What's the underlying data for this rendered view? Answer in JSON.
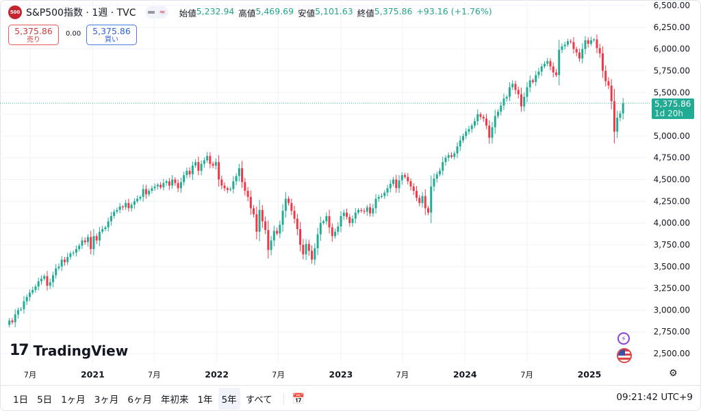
{
  "header": {
    "symbol_logo": "500",
    "title": "S&P500指数 · 1週 · TVC",
    "mini_icon": "≈",
    "ohlc": {
      "open_label": "始値",
      "open": "5,232.94",
      "high_label": "高値",
      "high": "5,469.69",
      "low_label": "安値",
      "low": "5,101.63",
      "close_label": "終値",
      "close": "5,375.86",
      "change": "+93.16 (+1.76%)"
    }
  },
  "trade": {
    "sell_price": "5,375.86",
    "sell_label": "売り",
    "spread": "0.00",
    "buy_price": "5,375.86",
    "buy_label": "買い"
  },
  "price_tag": {
    "price": "5,375.86",
    "countdown": "1d 20h"
  },
  "watermark": "TradingView",
  "watermark_mark": "17",
  "bottom": {
    "ranges": [
      "1日",
      "5日",
      "1ヶ月",
      "3ヶ月",
      "6ヶ月",
      "年初来",
      "1年",
      "5年",
      "すべて"
    ],
    "active_range": "5年",
    "clock": "09:21:42 UTC+9"
  },
  "colors": {
    "up": "#22ab94",
    "down": "#f23645",
    "grid": "#f0f3fa",
    "last_line": "#22ab94"
  },
  "chart_data": {
    "type": "candlestick",
    "title": "S&P500指数 · 1週 · TVC",
    "interval": "weekly",
    "ylim": [
      2430,
      6500
    ],
    "y_ticks": [
      2500,
      2750,
      3000,
      3250,
      3500,
      3750,
      4000,
      4250,
      4500,
      4750,
      5000,
      5250,
      5500,
      5750,
      6000,
      6250,
      6500
    ],
    "y_tick_labels": [
      "2,500.00",
      "2,750.00",
      "3,000.00",
      "3,250.00",
      "3,500.00",
      "3,750.00",
      "4,000.00",
      "4,250.00",
      "4,500.00",
      "4,750.00",
      "5,000.00",
      "5,250.00",
      "5,500.00",
      "5,750.00",
      "6,000.00",
      "6,250.00",
      "6,500.00"
    ],
    "x_ticks": [
      {
        "label": "7月",
        "date": "2020-07"
      },
      {
        "label": "2021",
        "date": "2021-01"
      },
      {
        "label": "7月",
        "date": "2021-07"
      },
      {
        "label": "2022",
        "date": "2022-01"
      },
      {
        "label": "7月",
        "date": "2022-07"
      },
      {
        "label": "2023",
        "date": "2023-01"
      },
      {
        "label": "7月",
        "date": "2023-07"
      },
      {
        "label": "2024",
        "date": "2024-01"
      },
      {
        "label": "7月",
        "date": "2024-07"
      },
      {
        "label": "2025",
        "date": "2025-01"
      }
    ],
    "bold_ticks": [
      "2021",
      "2022",
      "2023",
      "2024",
      "2025"
    ],
    "last_price": 5375.86,
    "weekly_closes": [
      2880,
      2860,
      2950,
      3000,
      3010,
      3100,
      3150,
      3200,
      3230,
      3270,
      3330,
      3360,
      3390,
      3280,
      3320,
      3400,
      3480,
      3500,
      3580,
      3550,
      3610,
      3650,
      3660,
      3700,
      3740,
      3800,
      3780,
      3840,
      3700,
      3850,
      3800,
      3900,
      3930,
      3950,
      4020,
      4080,
      4130,
      4150,
      4190,
      4180,
      4230,
      4170,
      4210,
      4250,
      4280,
      4300,
      4390,
      4330,
      4370,
      4400,
      4420,
      4440,
      4410,
      4460,
      4480,
      4430,
      4500,
      4460,
      4400,
      4470,
      4550,
      4600,
      4560,
      4660,
      4700,
      4600,
      4680,
      4720,
      4770,
      4680,
      4660,
      4700,
      4500,
      4430,
      4400,
      4380,
      4390,
      4480,
      4540,
      4630,
      4470,
      4370,
      4300,
      4170,
      4100,
      3900,
      4150,
      4020,
      3920,
      3690,
      3800,
      3910,
      3880,
      3980,
      4140,
      4280,
      4230,
      4140,
      4050,
      3930,
      3750,
      3640,
      3760,
      3680,
      3580,
      3710,
      3870,
      4000,
      4020,
      4080,
      3950,
      3850,
      3900,
      3960,
      4080,
      4120,
      4070,
      4000,
      4050,
      4120,
      4150,
      4140,
      4130,
      4180,
      4110,
      4170,
      4280,
      4300,
      4310,
      4350,
      4400,
      4450,
      4500,
      4400,
      4490,
      4550,
      4530,
      4480,
      4420,
      4370,
      4290,
      4230,
      4310,
      4170,
      4120,
      4420,
      4510,
      4560,
      4600,
      4700,
      4750,
      4780,
      4760,
      4800,
      4880,
      4950,
      5000,
      5050,
      5080,
      5120,
      5170,
      5250,
      5220,
      5200,
      5120,
      4980,
      5100,
      5230,
      5280,
      5350,
      5430,
      5450,
      5560,
      5600,
      5530,
      5480,
      5340,
      5450,
      5560,
      5640,
      5620,
      5700,
      5740,
      5800,
      5830,
      5860,
      5800,
      5730,
      5700,
      5990,
      6030,
      6050,
      6090,
      6080,
      6000,
      5960,
      5890,
      6000,
      6100,
      6060,
      6100,
      6110,
      6010,
      5950,
      5750,
      5630,
      5580,
      5400,
      5050,
      5210,
      5260,
      5375.86
    ],
    "first_open": 2830
  }
}
